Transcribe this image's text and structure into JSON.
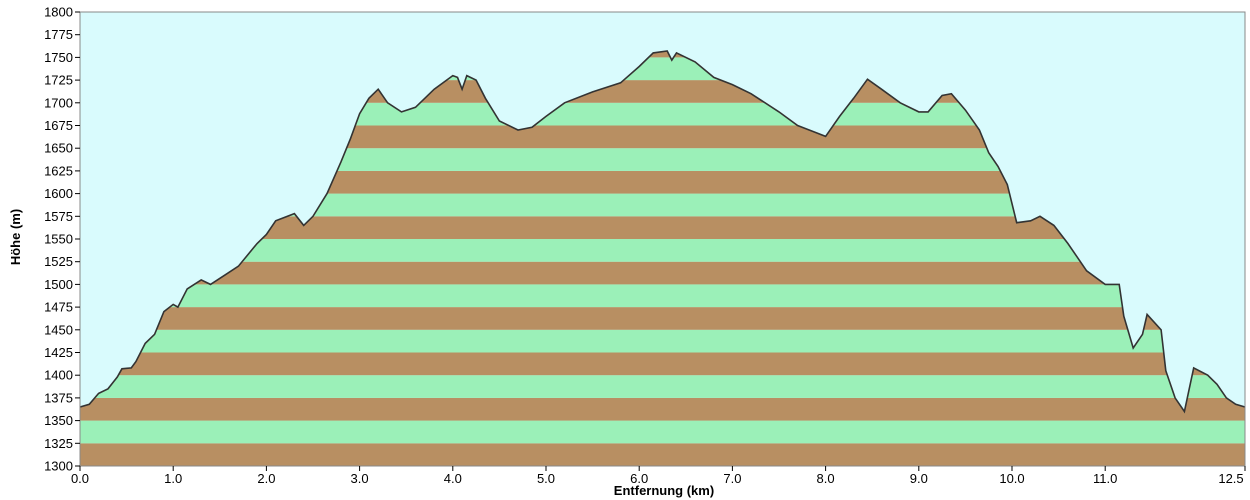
{
  "chart_data": {
    "type": "area",
    "x_label": "Entfernung   (km)",
    "y_label": "Höhe (m)",
    "xlim": [
      0,
      12.5
    ],
    "ylim": [
      1300,
      1800
    ],
    "xticks": [
      {
        "value": 0,
        "label": "0.0"
      },
      {
        "value": 1,
        "label": "1.0"
      },
      {
        "value": 2,
        "label": "2.0"
      },
      {
        "value": 3,
        "label": "3.0"
      },
      {
        "value": 4,
        "label": "4.0"
      },
      {
        "value": 5,
        "label": "5.0"
      },
      {
        "value": 6,
        "label": "6.0"
      },
      {
        "value": 7,
        "label": "7.0"
      },
      {
        "value": 8,
        "label": "8.0"
      },
      {
        "value": 9,
        "label": "9.0"
      },
      {
        "value": 10,
        "label": "10.0"
      },
      {
        "value": 11,
        "label": "11.0"
      },
      12.5
    ],
    "yticks": [
      1300,
      1325,
      1350,
      1375,
      1400,
      1425,
      1450,
      1475,
      1500,
      1525,
      1550,
      1575,
      1600,
      1625,
      1650,
      1675,
      1700,
      1725,
      1750,
      1775,
      1800
    ],
    "band_colors": [
      "#b88f62",
      "#9bf0b8"
    ],
    "background": "#d9fbfd",
    "line_color": "#333333",
    "x": [
      0,
      0.1,
      0.2,
      0.3,
      0.4,
      0.45,
      0.55,
      0.6,
      0.7,
      0.8,
      0.9,
      1.0,
      1.05,
      1.15,
      1.3,
      1.4,
      1.55,
      1.7,
      1.9,
      2.0,
      2.1,
      2.3,
      2.4,
      2.5,
      2.65,
      2.8,
      2.9,
      3.0,
      3.1,
      3.2,
      3.3,
      3.45,
      3.6,
      3.8,
      4.0,
      4.05,
      4.1,
      4.15,
      4.25,
      4.35,
      4.5,
      4.7,
      4.85,
      5.0,
      5.2,
      5.5,
      5.8,
      6.0,
      6.15,
      6.3,
      6.35,
      6.4,
      6.6,
      6.8,
      7.0,
      7.2,
      7.5,
      7.7,
      7.9,
      8.0,
      8.15,
      8.3,
      8.45,
      8.6,
      8.8,
      9.0,
      9.1,
      9.25,
      9.35,
      9.5,
      9.65,
      9.75,
      9.85,
      9.95,
      10.05,
      10.2,
      10.3,
      10.45,
      10.6,
      10.8,
      11.0,
      11.15,
      11.2,
      11.3,
      11.4,
      11.45,
      11.6,
      11.65,
      11.75,
      11.85,
      11.95,
      12.1,
      12.2,
      12.3,
      12.4,
      12.5
    ],
    "values": [
      1365,
      1368,
      1380,
      1385,
      1398,
      1407,
      1408,
      1415,
      1435,
      1445,
      1470,
      1478,
      1475,
      1495,
      1505,
      1500,
      1510,
      1520,
      1545,
      1555,
      1570,
      1578,
      1565,
      1575,
      1600,
      1635,
      1660,
      1688,
      1705,
      1715,
      1700,
      1690,
      1695,
      1715,
      1730,
      1728,
      1715,
      1730,
      1725,
      1705,
      1680,
      1670,
      1673,
      1685,
      1700,
      1712,
      1722,
      1740,
      1755,
      1757,
      1747,
      1755,
      1745,
      1728,
      1720,
      1710,
      1690,
      1675,
      1667,
      1663,
      1685,
      1705,
      1726,
      1715,
      1700,
      1690,
      1690,
      1708,
      1710,
      1692,
      1670,
      1645,
      1630,
      1610,
      1568,
      1570,
      1575,
      1565,
      1545,
      1515,
      1500,
      1500,
      1465,
      1430,
      1445,
      1467,
      1450,
      1405,
      1375,
      1360,
      1408,
      1400,
      1390,
      1375,
      1368,
      1365
    ]
  }
}
